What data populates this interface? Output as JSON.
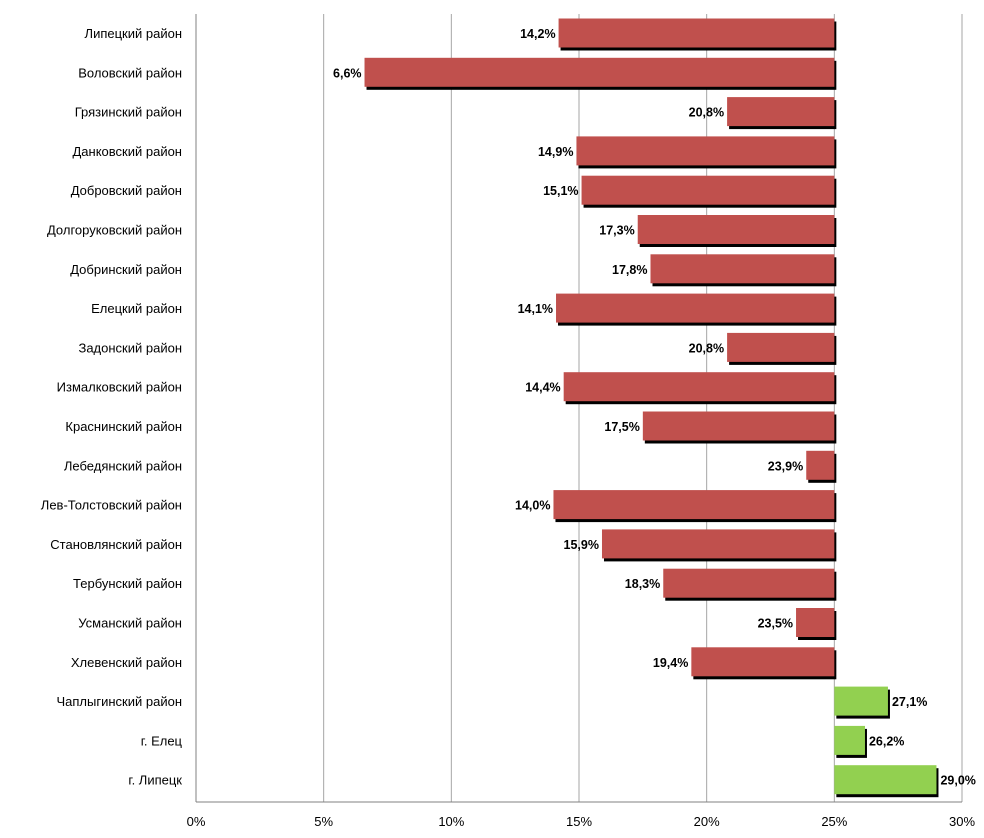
{
  "chart_data": {
    "type": "bar",
    "orientation": "horizontal",
    "baseline": 25,
    "title": "",
    "xlabel": "",
    "ylabel": "",
    "xlim": [
      0,
      30
    ],
    "x_ticks": [
      0,
      5,
      10,
      15,
      20,
      25,
      30
    ],
    "x_tick_labels": [
      "0%",
      "5%",
      "10%",
      "15%",
      "20%",
      "25%",
      "30%"
    ],
    "grid": "vertical",
    "legend": "none",
    "categories": [
      "Липецкий район",
      "Воловский район",
      "Грязинский район",
      "Данковский район",
      "Добровский район",
      "Долгоруковский район",
      "Добринский район",
      "Елецкий район",
      "Задонский район",
      "Измалковский район",
      "Краснинский район",
      "Лебедянский район",
      "Лев-Толстовский район",
      "Становлянский район",
      "Тербунский район",
      "Усманский район",
      "Хлевенский район",
      "Чаплыгинский район",
      "г. Елец",
      "г. Липецк"
    ],
    "values": [
      14.2,
      6.6,
      20.8,
      14.9,
      15.1,
      17.3,
      17.8,
      14.1,
      20.8,
      14.4,
      17.5,
      23.9,
      14.0,
      15.9,
      18.3,
      23.5,
      19.4,
      27.1,
      26.2,
      29.0
    ],
    "value_labels": [
      "14,2%",
      "6,6%",
      "20,8%",
      "14,9%",
      "15,1%",
      "17,3%",
      "17,8%",
      "14,1%",
      "20,8%",
      "14,4%",
      "17,5%",
      "23,9%",
      "14,0%",
      "15,9%",
      "18,3%",
      "23,5%",
      "19,4%",
      "27,1%",
      "26,2%",
      "29,0%"
    ],
    "colors": {
      "below_baseline": "#C0504D",
      "above_baseline": "#92D050",
      "shadow": "#000000",
      "grid": "#A6A6A6",
      "axis": "#808080"
    }
  }
}
